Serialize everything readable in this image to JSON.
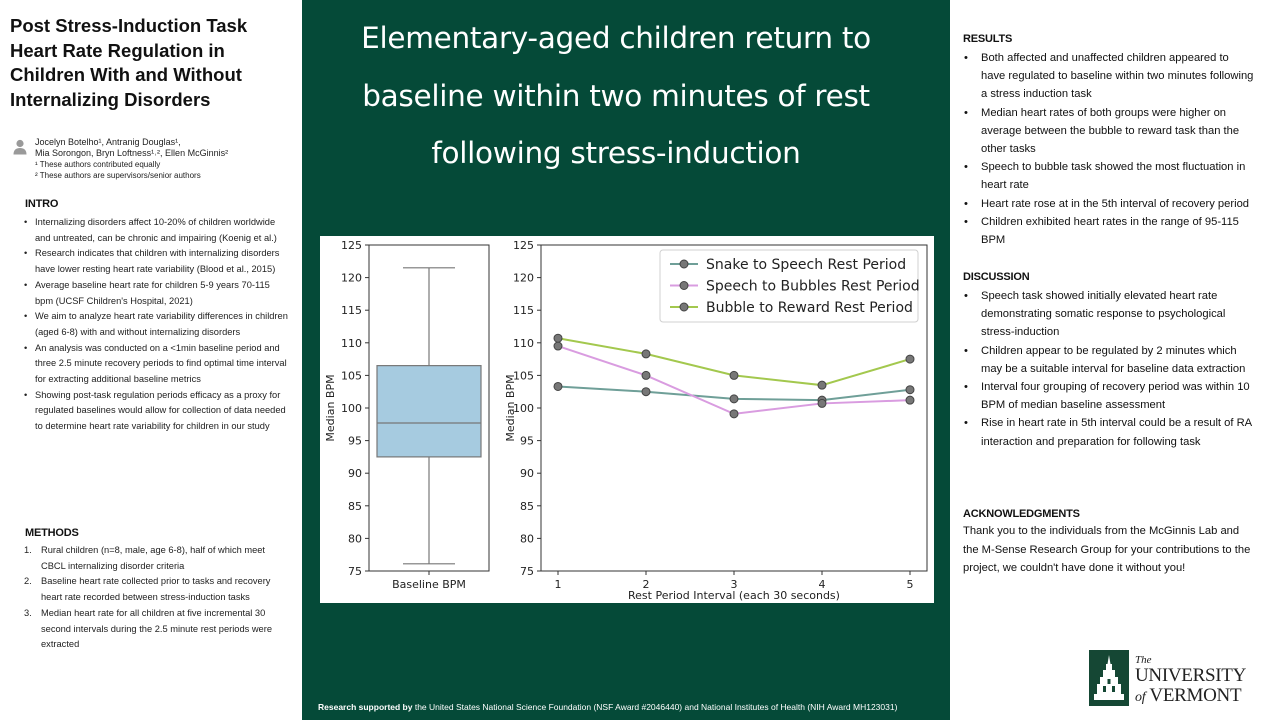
{
  "title": "Post Stress-Induction Task Heart Rate Regulation in Children With and Without Internalizing Disorders",
  "authors": {
    "line1": "Jocelyn Botelho¹, Antranig Douglas¹,",
    "line2": "Mia Sorongon, Bryn Loftness¹˒², Ellen McGinnis²",
    "note1": "¹ These authors contributed equally",
    "note2": "² These authors are supervisors/senior authors"
  },
  "intro": {
    "heading": "INTRO",
    "items": [
      "Internalizing disorders affect 10-20% of children worldwide and untreated, can be chronic and impairing (Koenig et al.)",
      "Research indicates that children with internalizing disorders have lower resting heart rate variability (Blood et al., 2015)",
      "Average baseline heart rate for children 5-9 years 70-115 bpm (UCSF Children's Hospital, 2021)",
      "We aim to analyze heart rate variability differences in children (aged 6-8) with and without internalizing disorders",
      "An analysis was conducted on a <1min baseline period and three 2.5 minute recovery periods to find optimal time interval for extracting additional baseline metrics",
      "Showing post-task regulation periods efficacy as a proxy for regulated baselines would allow for collection of data needed to determine heart rate variability for children in our study"
    ]
  },
  "methods": {
    "heading": "METHODS",
    "items": [
      {
        "num": "1.",
        "text": "Rural children (n=8, male, age 6-8), half of which meet CBCL internalizing disorder criteria"
      },
      {
        "num": "2.",
        "text": "Baseline heart rate collected prior to tasks and recovery heart rate recorded between stress-induction tasks"
      },
      {
        "num": "3.",
        "text": "Median heart rate for all children at five incremental 30 second intervals during the 2.5 minute rest periods were extracted"
      }
    ]
  },
  "headline": "Elementary-aged children return to baseline within two minutes of rest following stress-induction",
  "chart_data": [
    {
      "type": "box",
      "category": "Baseline BPM",
      "ylabel": "Median BPM",
      "ylim": [
        75,
        125
      ],
      "yticks": [
        75,
        80,
        85,
        90,
        95,
        100,
        105,
        110,
        115,
        120,
        125
      ],
      "whisker_low": 76.1,
      "q1": 92.5,
      "median": 97.7,
      "q3": 106.5,
      "whisker_high": 121.5,
      "color": "#a6cbe0"
    },
    {
      "type": "line",
      "xlabel": "Rest Period Interval (each 30 seconds)",
      "ylabel": "Median BPM",
      "ylim": [
        75,
        125
      ],
      "yticks": [
        75,
        80,
        85,
        90,
        95,
        100,
        105,
        110,
        115,
        120,
        125
      ],
      "x": [
        1,
        2,
        3,
        4,
        5
      ],
      "legend_position": "top-right",
      "series": [
        {
          "name": "Snake to Speech Rest Period",
          "color": "#6f9f98",
          "values": [
            103.3,
            102.5,
            101.4,
            101.2,
            102.8
          ]
        },
        {
          "name": "Speech to Bubbles Rest Period",
          "color": "#d99ce0",
          "values": [
            109.5,
            105.0,
            99.1,
            100.7,
            101.2
          ]
        },
        {
          "name": "Bubble to Reward Rest Period",
          "color": "#a3c84e",
          "values": [
            110.7,
            108.3,
            105.0,
            103.5,
            107.5
          ]
        }
      ]
    }
  ],
  "footer": {
    "bold": "Research supported by",
    "text": " the United States National Science Foundation (NSF Award #2046440) and National Institutes of Health (NIH Award MH123031)"
  },
  "results": {
    "heading": "RESULTS",
    "items": [
      "Both affected and unaffected children appeared to have regulated to baseline within two minutes following a stress induction task",
      "Median heart rates of both groups were higher on average between the bubble to reward task than the other tasks",
      "Speech to bubble task showed the most fluctuation in heart rate",
      "Heart rate rose at in the 5th interval of recovery period",
      "Children exhibited heart rates in the range of 95-115 BPM"
    ]
  },
  "discussion": {
    "heading": "DISCUSSION",
    "items": [
      "Speech task showed initially elevated heart rate demonstrating somatic response to psychological stress-induction",
      "Children appear to be regulated by 2 minutes which may be a suitable interval for baseline data extraction",
      "Interval four grouping of recovery period was within 10 BPM of median baseline assessment",
      "Rise in heart rate in 5th interval could be a result of RA interaction and preparation for following task"
    ]
  },
  "acknowledgments": {
    "heading": "ACKNOWLEDGMENTS",
    "text": "Thank you to the individuals from the McGinnis Lab and the M-Sense Research Group for your contributions to the project, we couldn't have done it without you!"
  },
  "logo": {
    "the": "The",
    "university": "UNIVERSITY",
    "of": "of",
    "vermont": "VERMONT"
  },
  "icons": {
    "author": "person-icon",
    "logo_seal": "uvm-seal-icon"
  }
}
